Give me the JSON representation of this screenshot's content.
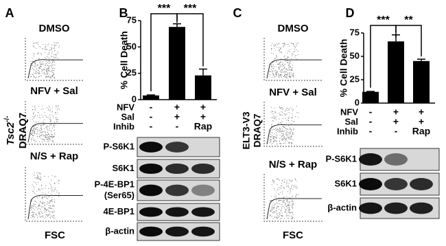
{
  "panel_labels": [
    "A",
    "B",
    "C",
    "D"
  ],
  "flow_a": {
    "y_label_main": "Tsc2",
    "y_label_sup": "-/-",
    "y_label": "DRAQ7",
    "x_label": "FSC",
    "plots": [
      "DMSO",
      "NFV + Sal",
      "N/S + Rap"
    ]
  },
  "flow_c": {
    "y_label_line1": "ELT3-V3",
    "y_label_line2": "DRAQ7",
    "x_label": "FSC",
    "plots": [
      "DMSO",
      "NFV + Sal",
      "N/S + Rap"
    ]
  },
  "chart_data": [
    {
      "type": "bar",
      "y_label": "% Cell Death",
      "categories": [
        null,
        null,
        null
      ],
      "values": [
        4,
        69,
        23
      ],
      "errors": [
        0.5,
        3,
        6
      ],
      "ylim": [
        0,
        75
      ],
      "yticks": [
        0,
        25,
        50,
        75
      ],
      "color": "#000000",
      "significance": [
        "***",
        "***"
      ],
      "conditions": [
        {
          "name": "NFV",
          "values": [
            "-",
            "+",
            "+"
          ]
        },
        {
          "name": "Sal",
          "values": [
            "-",
            "+",
            "+"
          ]
        },
        {
          "name": "Inhib",
          "values": [
            "-",
            "-",
            "Rap"
          ]
        }
      ]
    },
    {
      "type": "bar",
      "y_label": "% Cell Death",
      "categories": [
        null,
        null,
        null
      ],
      "values": [
        12,
        66,
        45
      ],
      "errors": [
        0.5,
        7,
        2
      ],
      "ylim": [
        0,
        75
      ],
      "yticks": [
        0,
        25,
        50,
        75
      ],
      "color": "#000000",
      "significance": [
        "***",
        "**"
      ],
      "conditions": [
        {
          "name": "NFV",
          "values": [
            "-",
            "+",
            "+"
          ]
        },
        {
          "name": "Sal",
          "values": [
            "-",
            "+",
            "+"
          ]
        },
        {
          "name": "Inhib",
          "values": [
            "-",
            "-",
            "Rap"
          ]
        }
      ]
    }
  ],
  "blots_b": [
    "P-S6K1",
    "S6K1",
    [
      "P-4E-BP1",
      "(Ser65)"
    ],
    "4E-BP1",
    "β-actin"
  ],
  "blots_d": [
    "P-S6K1",
    "S6K1",
    "β-actin"
  ]
}
